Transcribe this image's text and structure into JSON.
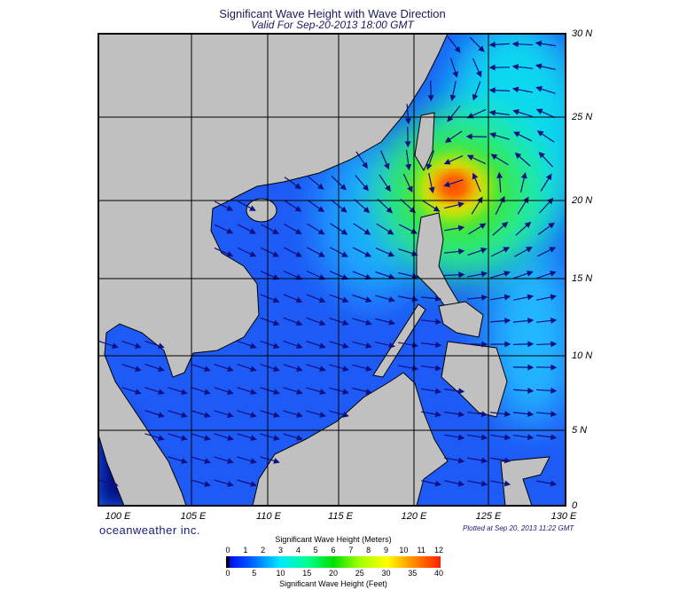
{
  "title": "Significant Wave Height with Wave Direction",
  "subtitle": "Valid For Sep-20-2013 18:00 GMT",
  "lat_labels": [
    "30 N",
    "25 N",
    "20 N",
    "15 N",
    "10 N",
    "5 N",
    "0"
  ],
  "lon_labels": [
    "100 E",
    "105 E",
    "110 E",
    "115 E",
    "120 E",
    "125 E",
    "130 E"
  ],
  "brand": "oceanweather inc.",
  "plotted": "Plotted at Sep 20, 2013 11:22 GMT",
  "colorbar": {
    "meters_title": "Significant Wave Height (Meters)",
    "feet_title": "Significant Wave Height (Feet)",
    "meters_ticks": [
      "0",
      "1",
      "2",
      "3",
      "4",
      "5",
      "6",
      "7",
      "8",
      "9",
      "10",
      "11",
      "12"
    ],
    "feet_ticks": [
      "0",
      "5",
      "10",
      "15",
      "20",
      "25",
      "30",
      "35",
      "40"
    ]
  },
  "colors": {
    "land": "#c0c0c0",
    "arrow": "#101080",
    "low": "#0010f0",
    "high": "#ff2000"
  }
}
